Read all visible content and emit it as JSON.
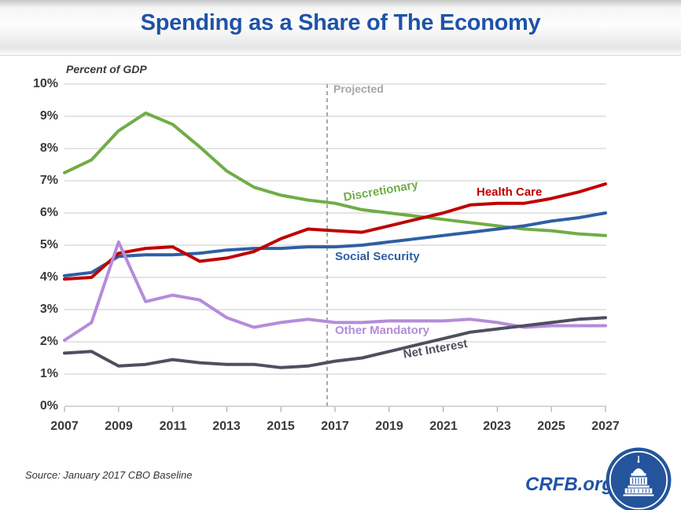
{
  "header": {
    "title": "Spending as a Share of The Economy"
  },
  "chart_data": {
    "type": "line",
    "title": "Spending as a Share of The Economy",
    "ylabel": "Percent of GDP",
    "ylim": [
      0,
      10
    ],
    "grid": "horizontal",
    "projected_label": "Projected",
    "projected_divider_year": 2016.7,
    "x": [
      2007,
      2008,
      2009,
      2010,
      2011,
      2012,
      2013,
      2014,
      2015,
      2016,
      2017,
      2018,
      2019,
      2020,
      2021,
      2022,
      2023,
      2024,
      2025,
      2026,
      2027
    ],
    "xtick_labels": [
      "2007",
      "2009",
      "2011",
      "2013",
      "2015",
      "2017",
      "2019",
      "2021",
      "2023",
      "2025",
      "2027"
    ],
    "ytick_labels": [
      "10%",
      "9%",
      "8%",
      "7%",
      "6%",
      "5%",
      "4%",
      "3%",
      "2%",
      "1%",
      "0%"
    ],
    "series": [
      {
        "name": "Discretionary",
        "color": "#70AD47",
        "values": [
          7.25,
          7.65,
          8.55,
          9.1,
          8.75,
          8.05,
          7.3,
          6.8,
          6.55,
          6.4,
          6.3,
          6.1,
          6.0,
          5.9,
          5.8,
          5.7,
          5.6,
          5.5,
          5.45,
          5.35,
          5.3
        ]
      },
      {
        "name": "Social Security",
        "color": "#2E5FA3",
        "values": [
          4.05,
          4.15,
          4.65,
          4.7,
          4.7,
          4.75,
          4.85,
          4.9,
          4.9,
          4.95,
          4.95,
          5.0,
          5.1,
          5.2,
          5.3,
          5.4,
          5.5,
          5.6,
          5.75,
          5.85,
          6.0
        ]
      },
      {
        "name": "Health Care",
        "color": "#C00000",
        "values": [
          3.95,
          4.0,
          4.75,
          4.9,
          4.95,
          4.5,
          4.6,
          4.8,
          5.2,
          5.5,
          5.45,
          5.4,
          5.6,
          5.8,
          6.0,
          6.25,
          6.3,
          6.3,
          6.45,
          6.65,
          6.9
        ]
      },
      {
        "name": "Other Mandatory",
        "color": "#B48CD9",
        "values": [
          2.05,
          2.6,
          5.1,
          3.25,
          3.45,
          3.3,
          2.75,
          2.45,
          2.6,
          2.7,
          2.6,
          2.6,
          2.65,
          2.65,
          2.65,
          2.7,
          2.6,
          2.45,
          2.5,
          2.5,
          2.5
        ]
      },
      {
        "name": "Net Interest",
        "color": "#4F4F60",
        "values": [
          1.65,
          1.7,
          1.25,
          1.3,
          1.45,
          1.35,
          1.3,
          1.3,
          1.2,
          1.25,
          1.4,
          1.5,
          1.7,
          1.9,
          2.1,
          2.3,
          2.4,
          2.5,
          2.6,
          2.7,
          2.75
        ]
      }
    ]
  },
  "footer": {
    "source": "Source: January 2017 CBO Baseline",
    "site": "CRFB.org"
  },
  "branding": {
    "logo_icon": "capitol-dome",
    "logo_bg": "#24549C",
    "accent_blue": "#1F53A8"
  }
}
